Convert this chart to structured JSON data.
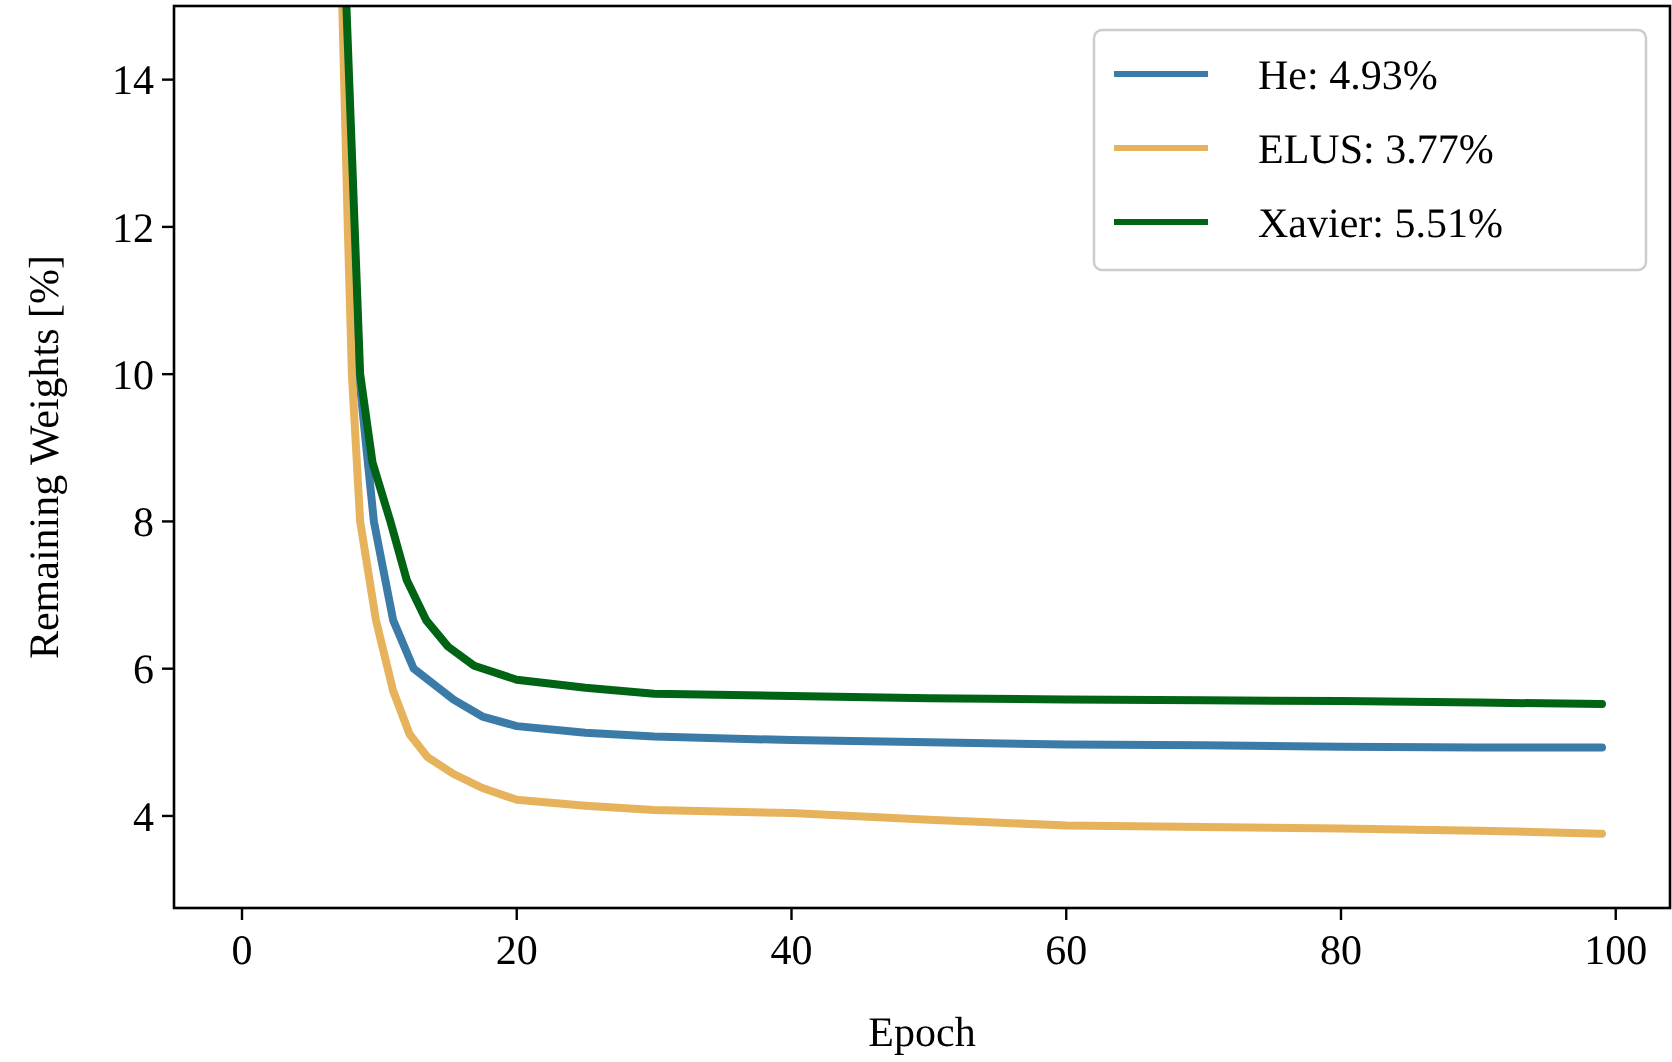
{
  "chart_data": {
    "type": "line",
    "xlabel": "Epoch",
    "ylabel": "Remaining Weights [%]",
    "xlim": [
      -4.95,
      103.95
    ],
    "ylim": [
      2.75,
      15
    ],
    "xticks": [
      0,
      20,
      40,
      60,
      80,
      100
    ],
    "yticks": [
      4,
      6,
      8,
      10,
      12,
      14
    ],
    "grid": false,
    "legend": "top right",
    "line_style": "solid",
    "marker": "none",
    "series": [
      {
        "name": "He: 4.93%",
        "color": "#3b7ba8",
        "x": [
          7.4,
          8,
          8.4,
          9.6,
          11,
          12.5,
          15.4,
          17.5,
          20,
          25,
          30,
          40,
          50,
          60,
          70,
          80,
          90,
          99
        ],
        "values": [
          15,
          12,
          10.2,
          8,
          6.66,
          6.0,
          5.58,
          5.35,
          5.22,
          5.13,
          5.08,
          5.03,
          5.0,
          4.97,
          4.96,
          4.94,
          4.93,
          4.93
        ]
      },
      {
        "name": "ELUS: 3.77%",
        "color": "#e6b35c",
        "x": [
          7.3,
          7.7,
          8,
          8.6,
          9.75,
          11,
          12.2,
          13.5,
          15.4,
          17.5,
          20,
          25,
          30,
          40,
          50,
          60,
          70,
          80,
          90,
          99
        ],
        "values": [
          15,
          12,
          10,
          8,
          6.66,
          5.7,
          5.11,
          4.8,
          4.57,
          4.38,
          4.22,
          4.14,
          4.08,
          4.04,
          3.95,
          3.87,
          3.85,
          3.83,
          3.8,
          3.76
        ]
      },
      {
        "name": "Xavier: 5.51%",
        "color": "#006414",
        "x": [
          7.6,
          8,
          8.6,
          9.5,
          10.8,
          12,
          13.4,
          15,
          16.9,
          20,
          25,
          30,
          40,
          50,
          60,
          70,
          80,
          90,
          99
        ],
        "values": [
          15,
          13,
          10,
          8.8,
          8,
          7.2,
          6.66,
          6.3,
          6.04,
          5.85,
          5.74,
          5.66,
          5.63,
          5.6,
          5.58,
          5.57,
          5.56,
          5.54,
          5.52
        ]
      }
    ]
  }
}
